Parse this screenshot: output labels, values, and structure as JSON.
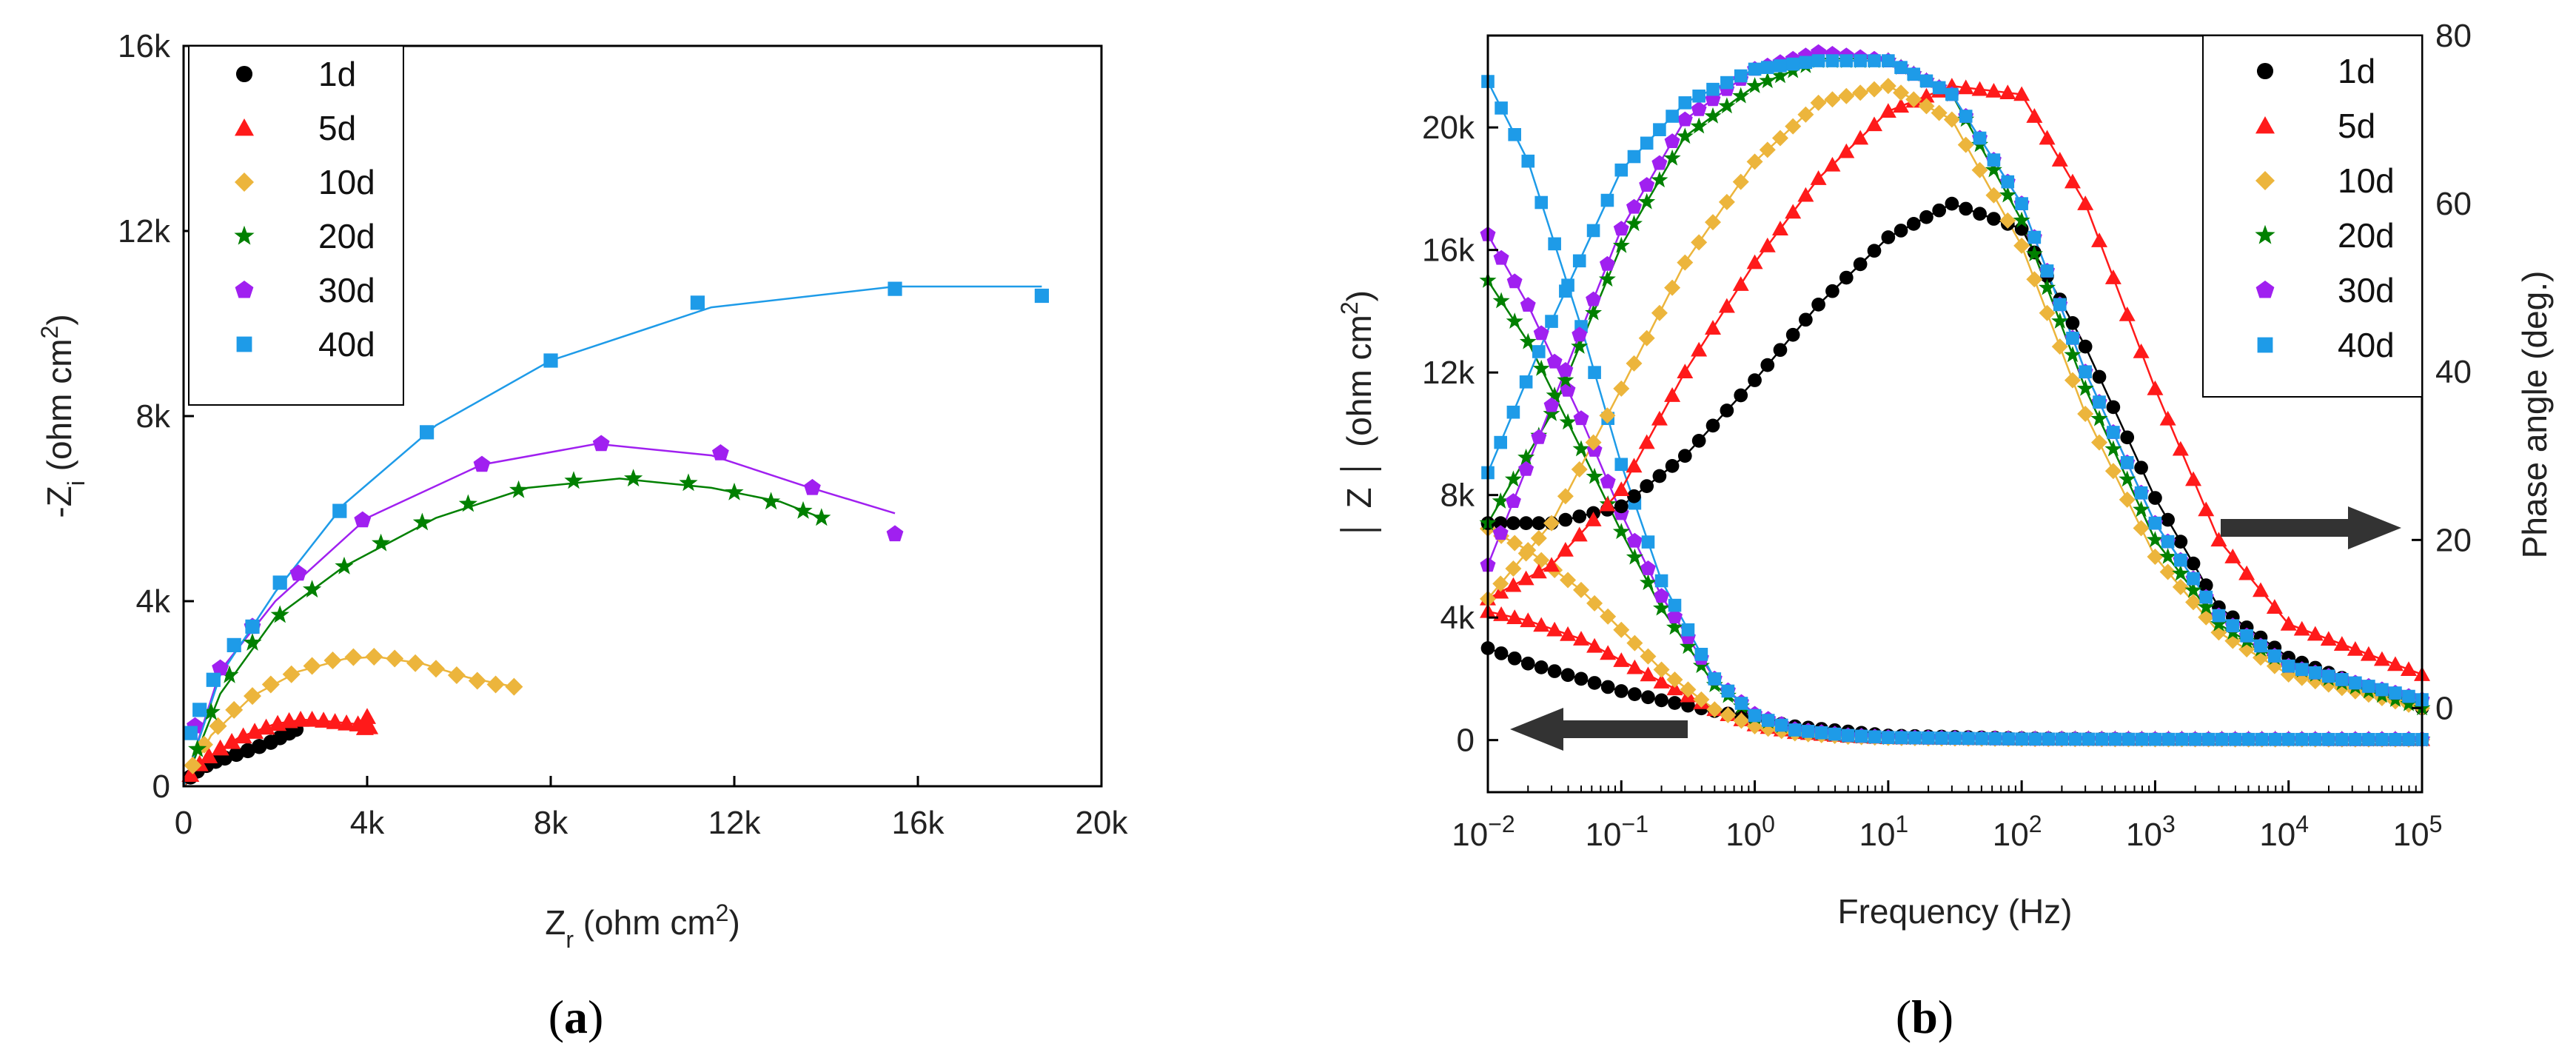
{
  "chart_data": [
    {
      "type": "scatter",
      "panel": "a",
      "caption": {
        "open": "(",
        "letter": "a",
        "close": ")"
      },
      "xlabel": {
        "main": "Z",
        "sub": "r",
        "unit_pre": " (ohm cm",
        "sup": "2",
        "unit_post": ")"
      },
      "ylabel": {
        "pre": "-Z",
        "sub": "i",
        "unit_pre": " (ohm cm",
        "sup": "2",
        "unit_post": ")"
      },
      "xlim": [
        0,
        20000
      ],
      "ylim": [
        0,
        16000
      ],
      "xticks": [
        0,
        4000,
        8000,
        12000,
        16000,
        20000
      ],
      "xtick_labels": [
        "0",
        "4k",
        "8k",
        "12k",
        "16k",
        "20k"
      ],
      "yticks": [
        0,
        4000,
        8000,
        12000,
        16000
      ],
      "ytick_labels": [
        "0",
        "4k",
        "8k",
        "12k",
        "16k"
      ],
      "legend": {
        "position": "top-left",
        "labels": [
          "1d",
          "5d",
          "10d",
          "20d",
          "30d",
          "40d"
        ]
      },
      "series": [
        {
          "name": "1d",
          "color": "#000000",
          "marker": "circle",
          "x": [
            150,
            300,
            500,
            700,
            900,
            1150,
            1400,
            1650,
            1900,
            2100,
            2300,
            2450
          ],
          "y": [
            200,
            330,
            450,
            540,
            610,
            690,
            770,
            860,
            950,
            1050,
            1150,
            1230
          ]
        },
        {
          "name": "5d",
          "color": "#ff1a1a",
          "marker": "triangle",
          "x": [
            150,
            350,
            550,
            800,
            1050,
            1300,
            1550,
            1800,
            2050,
            2300,
            2550,
            2800,
            3050,
            3300,
            3550,
            3800,
            4000,
            4050,
            3950,
            4000
          ],
          "y": [
            250,
            480,
            650,
            820,
            960,
            1080,
            1180,
            1270,
            1350,
            1410,
            1440,
            1440,
            1420,
            1390,
            1360,
            1340,
            1320,
            1280,
            1260,
            1500
          ]
        },
        {
          "name": "10d",
          "color": "#ecb53c",
          "marker": "diamond",
          "x": [
            200,
            450,
            750,
            1100,
            1500,
            1900,
            2350,
            2800,
            3250,
            3700,
            4150,
            4600,
            5050,
            5500,
            5950,
            6400,
            6800,
            7200
          ],
          "y": [
            450,
            900,
            1300,
            1650,
            1950,
            2200,
            2420,
            2600,
            2720,
            2790,
            2800,
            2760,
            2660,
            2540,
            2400,
            2280,
            2200,
            2150
          ]
        },
        {
          "name": "20d",
          "color": "#008000",
          "marker": "star",
          "x": [
            300,
            600,
            1000,
            1500,
            2100,
            2800,
            3500,
            4300,
            5200,
            6200,
            7300,
            8500,
            9800,
            11000,
            12000,
            12800,
            13500,
            13900
          ],
          "y": [
            800,
            1600,
            2400,
            3100,
            3700,
            4250,
            4750,
            5250,
            5700,
            6100,
            6400,
            6600,
            6650,
            6550,
            6350,
            6150,
            5950,
            5800
          ]
        },
        {
          "name": "30d",
          "color": "#a020f0",
          "marker": "pentagon",
          "x": [
            250,
            800,
            1500,
            2500,
            3900,
            6500,
            9100,
            11700,
            13700,
            15500
          ],
          "y": [
            1300,
            2550,
            3450,
            4600,
            5750,
            6950,
            7400,
            7200,
            6450,
            5450
          ]
        },
        {
          "name": "40d",
          "color": "#1e9be8",
          "marker": "square",
          "x": [
            150,
            350,
            650,
            1100,
            1500,
            2100,
            3400,
            5300,
            8000,
            11200,
            15500,
            18700
          ],
          "y": [
            1150,
            1650,
            2300,
            3050,
            3450,
            4400,
            5950,
            7650,
            9200,
            10450,
            10750,
            10600
          ]
        }
      ],
      "fit_lines": [
        {
          "name": "1d",
          "color": "#000000",
          "x": [
            0,
            400,
            900,
            1500,
            2000,
            2500
          ],
          "y": [
            0,
            380,
            620,
            800,
            1000,
            1250
          ]
        },
        {
          "name": "5d",
          "color": "#ff1a1a",
          "x": [
            0,
            500,
            1200,
            2000,
            2600,
            3200,
            3800,
            4050
          ],
          "y": [
            0,
            600,
            1050,
            1350,
            1440,
            1400,
            1340,
            1300
          ]
        },
        {
          "name": "10d",
          "color": "#ecb53c",
          "x": [
            0,
            600,
            1500,
            2500,
            3500,
            4200,
            5200,
            6200,
            7200
          ],
          "y": [
            0,
            1100,
            1950,
            2480,
            2750,
            2800,
            2650,
            2350,
            2150
          ]
        },
        {
          "name": "20d",
          "color": "#008000",
          "x": [
            0,
            800,
            2000,
            3500,
            5500,
            7500,
            9500,
            11500,
            13000,
            13900
          ],
          "y": [
            0,
            2000,
            3650,
            4750,
            5800,
            6450,
            6650,
            6450,
            6150,
            5800
          ]
        },
        {
          "name": "30d",
          "color": "#a020f0",
          "x": [
            0,
            800,
            2000,
            4000,
            6500,
            9000,
            11500,
            13500,
            15500
          ],
          "y": [
            0,
            2500,
            4000,
            5800,
            6950,
            7400,
            7150,
            6500,
            5900
          ]
        },
        {
          "name": "40d",
          "color": "#1e9be8",
          "x": [
            0,
            800,
            2000,
            3500,
            5500,
            8000,
            11500,
            15500,
            18700
          ],
          "y": [
            0,
            2400,
            4200,
            6100,
            7800,
            9200,
            10350,
            10800,
            10800
          ]
        }
      ]
    },
    {
      "type": "line",
      "panel": "b",
      "caption": {
        "open": "(",
        "letter": "b",
        "close": ")"
      },
      "xlabel": "Frequency (Hz)",
      "ylabel_left": {
        "pre": "│ Z │ (ohm cm",
        "sup": "2",
        "post": ")"
      },
      "ylabel_right": "Phase angle (deg.)",
      "xscale": "log",
      "xlim": [
        0.01,
        100000
      ],
      "xtick_exponents": [
        -2,
        -1,
        0,
        1,
        2,
        3,
        4,
        5
      ],
      "xtick_base": "10",
      "xtick_exp_labels": [
        "−2",
        "−1",
        "0",
        "1",
        "2",
        "3",
        "4",
        "5"
      ],
      "ylim_left": [
        -1700,
        23000
      ],
      "yticks_left": [
        0,
        4000,
        8000,
        12000,
        16000,
        20000
      ],
      "ytick_labels_left": [
        "0",
        "4k",
        "8k",
        "12k",
        "16k",
        "20k"
      ],
      "ylim_right": [
        -10,
        80
      ],
      "yticks_right": [
        0,
        20,
        40,
        60,
        80
      ],
      "ytick_labels_right": [
        "0",
        "20",
        "40",
        "60",
        "80"
      ],
      "legend": {
        "position": "top-right",
        "labels": [
          "1d",
          "5d",
          "10d",
          "20d",
          "30d",
          "40d"
        ]
      },
      "annotations": [
        {
          "type": "arrow",
          "direction": "left",
          "meaning": "|Z| read on left axis"
        },
        {
          "type": "arrow",
          "direction": "right",
          "meaning": "phase read on right axis"
        }
      ],
      "impedance_series": [
        {
          "name": "1d",
          "color": "#000000",
          "marker": "circle",
          "f": [
            0.01,
            0.02,
            0.05,
            0.1,
            0.2,
            0.5,
            1,
            2,
            5,
            10,
            100,
            1000,
            100000
          ],
          "z": [
            3000,
            2500,
            2000,
            1600,
            1300,
            950,
            700,
            450,
            280,
            150,
            60,
            30,
            20
          ]
        },
        {
          "name": "5d",
          "color": "#ff1a1a",
          "marker": "triangle",
          "f": [
            0.01,
            0.02,
            0.05,
            0.1,
            0.2,
            0.5,
            1,
            2,
            5,
            10,
            100,
            1000,
            100000
          ],
          "z": [
            4200,
            3900,
            3300,
            2600,
            1900,
            1000,
            500,
            250,
            130,
            80,
            40,
            25,
            20
          ]
        },
        {
          "name": "10d",
          "color": "#ecb53c",
          "marker": "diamond",
          "f": [
            0.01,
            0.02,
            0.05,
            0.1,
            0.2,
            0.5,
            1,
            2,
            5,
            10,
            100,
            1000,
            100000
          ],
          "z": [
            6900,
            6200,
            4900,
            3600,
            2300,
            1000,
            450,
            220,
            110,
            70,
            35,
            25,
            20
          ]
        },
        {
          "name": "20d",
          "color": "#008000",
          "marker": "star",
          "f": [
            0.01,
            0.02,
            0.05,
            0.1,
            0.2,
            0.5,
            1,
            2,
            5,
            10,
            100,
            1000,
            100000
          ],
          "z": [
            15000,
            13000,
            9500,
            6800,
            4300,
            1800,
            750,
            320,
            140,
            80,
            35,
            25,
            20
          ]
        },
        {
          "name": "30d",
          "color": "#a020f0",
          "marker": "pentagon",
          "f": [
            0.01,
            0.02,
            0.05,
            0.1,
            0.2,
            0.5,
            1,
            2,
            5,
            10,
            100,
            1000,
            100000
          ],
          "z": [
            16500,
            14200,
            10500,
            7400,
            4700,
            2000,
            850,
            350,
            150,
            85,
            35,
            25,
            20
          ]
        },
        {
          "name": "40d",
          "color": "#1e9be8",
          "marker": "square",
          "f": [
            0.01,
            0.02,
            0.05,
            0.1,
            0.2,
            0.5,
            1,
            2,
            5,
            10,
            100,
            1000,
            100000
          ],
          "z": [
            21500,
            18900,
            13500,
            9000,
            5200,
            2000,
            800,
            330,
            150,
            85,
            35,
            25,
            20
          ]
        }
      ],
      "phase_series": [
        {
          "name": "1d",
          "color": "#000000",
          "marker": "circle",
          "f": [
            0.01,
            0.03,
            0.1,
            0.3,
            1,
            3,
            10,
            30,
            100,
            300,
            1000,
            3000,
            10000,
            100000
          ],
          "phase": [
            22,
            22,
            24,
            30,
            39,
            48,
            56,
            60,
            57,
            43,
            25,
            12,
            6,
            0
          ]
        },
        {
          "name": "5d",
          "color": "#ff1a1a",
          "marker": "triangle",
          "f": [
            0.01,
            0.03,
            0.1,
            0.3,
            1,
            3,
            10,
            30,
            100,
            300,
            1000,
            3000,
            10000,
            100000
          ],
          "phase": [
            13,
            17,
            26,
            40,
            53,
            63,
            71,
            74,
            73,
            60,
            38,
            20,
            10,
            4
          ]
        },
        {
          "name": "10d",
          "color": "#ecb53c",
          "marker": "diamond",
          "f": [
            0.01,
            0.03,
            0.1,
            0.3,
            1,
            3,
            10,
            30,
            100,
            300,
            1000,
            3000,
            10000,
            100000
          ],
          "phase": [
            13,
            22,
            38,
            53,
            65,
            72,
            74,
            70,
            55,
            35,
            18,
            9,
            4,
            0
          ]
        },
        {
          "name": "20d",
          "color": "#008000",
          "marker": "star",
          "f": [
            0.01,
            0.03,
            0.1,
            0.3,
            1,
            3,
            10,
            30,
            100,
            300,
            1000,
            3000,
            10000,
            100000
          ],
          "phase": [
            22,
            35,
            55,
            68,
            74,
            77,
            77,
            73,
            58,
            38,
            20,
            10,
            5,
            0
          ]
        },
        {
          "name": "30d",
          "color": "#a020f0",
          "marker": "pentagon",
          "f": [
            0.01,
            0.03,
            0.1,
            0.3,
            1,
            3,
            10,
            30,
            100,
            300,
            1000,
            3000,
            10000,
            100000
          ],
          "phase": [
            17,
            36,
            57,
            70,
            76,
            78,
            77,
            73,
            60,
            40,
            22,
            11,
            5,
            1
          ]
        },
        {
          "name": "40d",
          "color": "#1e9be8",
          "marker": "square",
          "f": [
            0.01,
            0.03,
            0.1,
            0.3,
            1,
            3,
            10,
            30,
            100,
            300,
            1000,
            3000,
            10000,
            100000
          ],
          "phase": [
            28,
            46,
            64,
            72,
            76,
            77,
            77,
            73,
            60,
            40,
            22,
            11,
            5,
            1
          ]
        }
      ]
    }
  ]
}
